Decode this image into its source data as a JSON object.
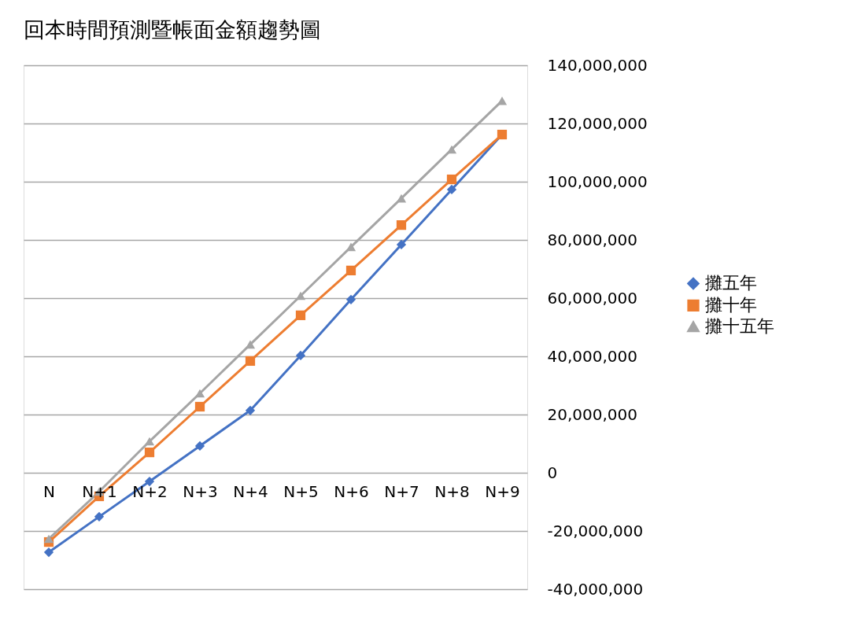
{
  "chart_data": {
    "type": "line",
    "title": "回本時間預測暨帳面金額趨勢圖",
    "categories": [
      "N",
      "N+1",
      "N+2",
      "N+3",
      "N+4",
      "N+5",
      "N+6",
      "N+7",
      "N+8",
      "N+9"
    ],
    "series": [
      {
        "name": "攤五年",
        "color": "#4472c4",
        "marker": "diamond",
        "values": [
          -27300000,
          -15100000,
          -3000000,
          9200000,
          21400000,
          40300000,
          59500000,
          78400000,
          97300000,
          116200000
        ]
      },
      {
        "name": "攤十年",
        "color": "#ed7d31",
        "marker": "square",
        "values": [
          -23800000,
          -8100000,
          7000000,
          22700000,
          38400000,
          54100000,
          69500000,
          85100000,
          100800000,
          116200000
        ]
      },
      {
        "name": "攤十五年",
        "color": "#a5a5a5",
        "marker": "triangle",
        "values": [
          -22700000,
          -6500000,
          10800000,
          27300000,
          44100000,
          60800000,
          77600000,
          94300000,
          111100000,
          127800000
        ]
      }
    ],
    "ylim": [
      -40000000,
      140000000
    ],
    "yticks": [
      {
        "value": -40000000,
        "label": "-40,000,000"
      },
      {
        "value": -20000000,
        "label": "-20,000,000"
      },
      0,
      {
        "value": 20000000,
        "label": "20,000,000"
      },
      {
        "value": 40000000,
        "label": "40,000,000"
      },
      {
        "value": 60000000,
        "label": "60,000,000"
      },
      {
        "value": 80000000,
        "label": "80,000,000"
      },
      {
        "value": 100000000,
        "label": "100,000,000"
      },
      {
        "value": 120000000,
        "label": "120,000,000"
      },
      {
        "value": 140000000,
        "label": "140,000,000"
      }
    ],
    "grid": "y",
    "legend": "right",
    "line_style": "solid"
  }
}
